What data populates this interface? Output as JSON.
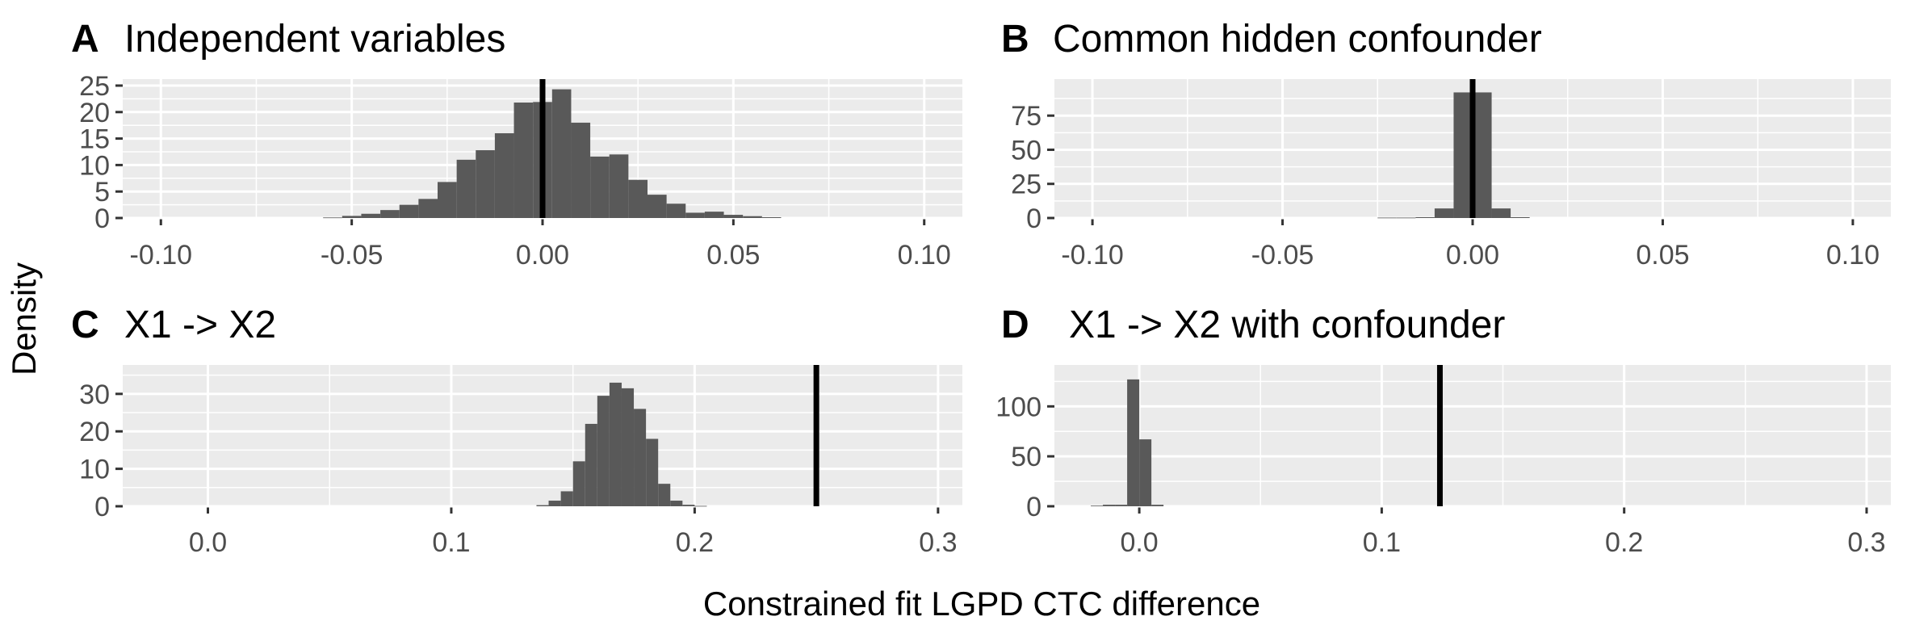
{
  "figure": {
    "ylabel": "Density",
    "xlabel": "Constrained fit LGPD CTC difference"
  },
  "chart_data": [
    {
      "type": "bar",
      "tag": "A",
      "title": "Independent variables",
      "xlim": [
        -0.11,
        0.11
      ],
      "ylim": [
        0,
        25
      ],
      "xticks": [
        -0.1,
        -0.05,
        0.0,
        0.05,
        0.1
      ],
      "xtick_labels": [
        "-0.10",
        "-0.05",
        "0.00",
        "0.05",
        "0.10"
      ],
      "yticks": [
        0,
        5,
        10,
        15,
        20,
        25
      ],
      "ytick_labels": [
        "0",
        "5",
        "10",
        "15",
        "20",
        "25"
      ],
      "bin_width": 0.005,
      "bin_start": -0.0575,
      "values": [
        0.1,
        0.4,
        0.8,
        1.5,
        2.5,
        3.6,
        6.8,
        11,
        12.8,
        16,
        21.8,
        21.9,
        24.3,
        18,
        11.6,
        12,
        7.2,
        4.4,
        2.7,
        1.0,
        1.2,
        0.6,
        0.35,
        0.15
      ],
      "vline": 0.0
    },
    {
      "type": "bar",
      "tag": "B",
      "title": "Common hidden confounder",
      "xlim": [
        -0.11,
        0.11
      ],
      "ylim": [
        0,
        97
      ],
      "xticks": [
        -0.1,
        -0.05,
        0.0,
        0.05,
        0.1
      ],
      "xtick_labels": [
        "-0.10",
        "-0.05",
        "0.00",
        "0.05",
        "0.10"
      ],
      "yticks": [
        0,
        25,
        50,
        75
      ],
      "ytick_labels": [
        "0",
        "25",
        "50",
        "75"
      ],
      "bin_width": 0.005,
      "bin_start": -0.025,
      "values": [
        0.3,
        0.3,
        0.6,
        7,
        92,
        92,
        7,
        0.6
      ],
      "vline": 0.0
    },
    {
      "type": "bar",
      "tag": "C",
      "title": "X1 -> X2",
      "xlim": [
        -0.035,
        0.31
      ],
      "ylim": [
        0,
        36
      ],
      "xticks": [
        0.0,
        0.1,
        0.2,
        0.3
      ],
      "xtick_labels": [
        "0.0",
        "0.1",
        "0.2",
        "0.3"
      ],
      "yticks": [
        0,
        10,
        20,
        30
      ],
      "ytick_labels": [
        "0",
        "10",
        "20",
        "30"
      ],
      "bin_width": 0.005,
      "bin_start": 0.135,
      "values": [
        0.3,
        1.5,
        4,
        12,
        22,
        29.5,
        33,
        31.5,
        26,
        18,
        6,
        1.5,
        0.4,
        0.1
      ],
      "vline": 0.25
    },
    {
      "type": "bar",
      "tag": "D",
      "title": "X1 -> X2 with confounder",
      "xlim": [
        -0.035,
        0.31
      ],
      "ylim": [
        0,
        135
      ],
      "xticks": [
        0.0,
        0.1,
        0.2,
        0.3
      ],
      "xtick_labels": [
        "0.0",
        "0.1",
        "0.2",
        "0.3"
      ],
      "yticks": [
        0,
        50,
        100
      ],
      "ytick_labels": [
        "0",
        "50",
        "100"
      ],
      "bin_width": 0.005,
      "bin_start": -0.02,
      "values": [
        0.6,
        1.5,
        1.5,
        127,
        67,
        1.5
      ],
      "vline": 0.124
    }
  ]
}
